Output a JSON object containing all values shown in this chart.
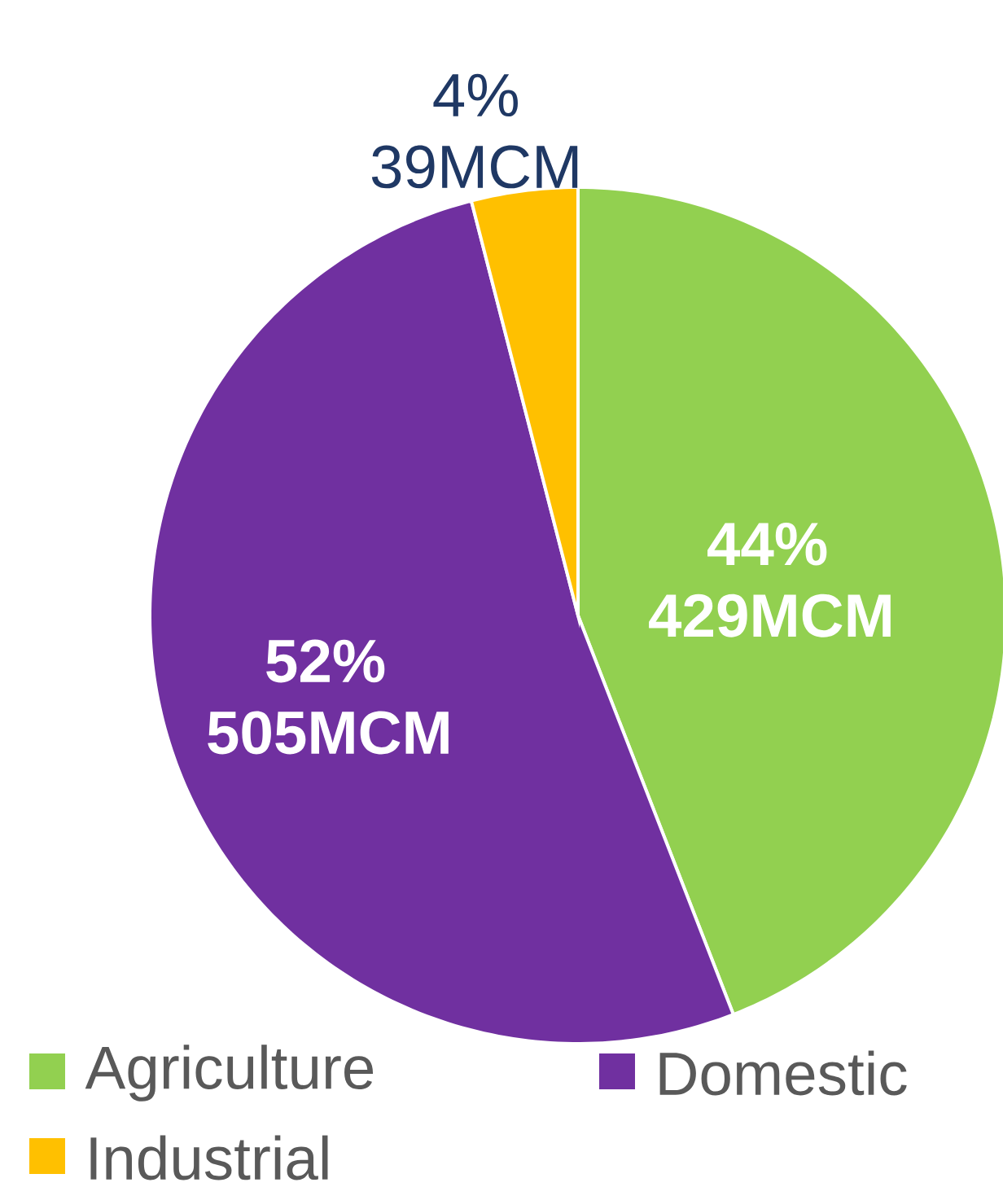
{
  "chart_data": {
    "type": "pie",
    "categories": [
      "Agriculture",
      "Domestic",
      "Industrial"
    ],
    "values": [
      429,
      505,
      39
    ],
    "colors": [
      "#92d050",
      "#7030a0",
      "#ffc000"
    ],
    "value_labels": [
      "44% 429MCM",
      "52% 505MCM",
      "4% 39MCM"
    ],
    "legend": "bottom"
  }
}
